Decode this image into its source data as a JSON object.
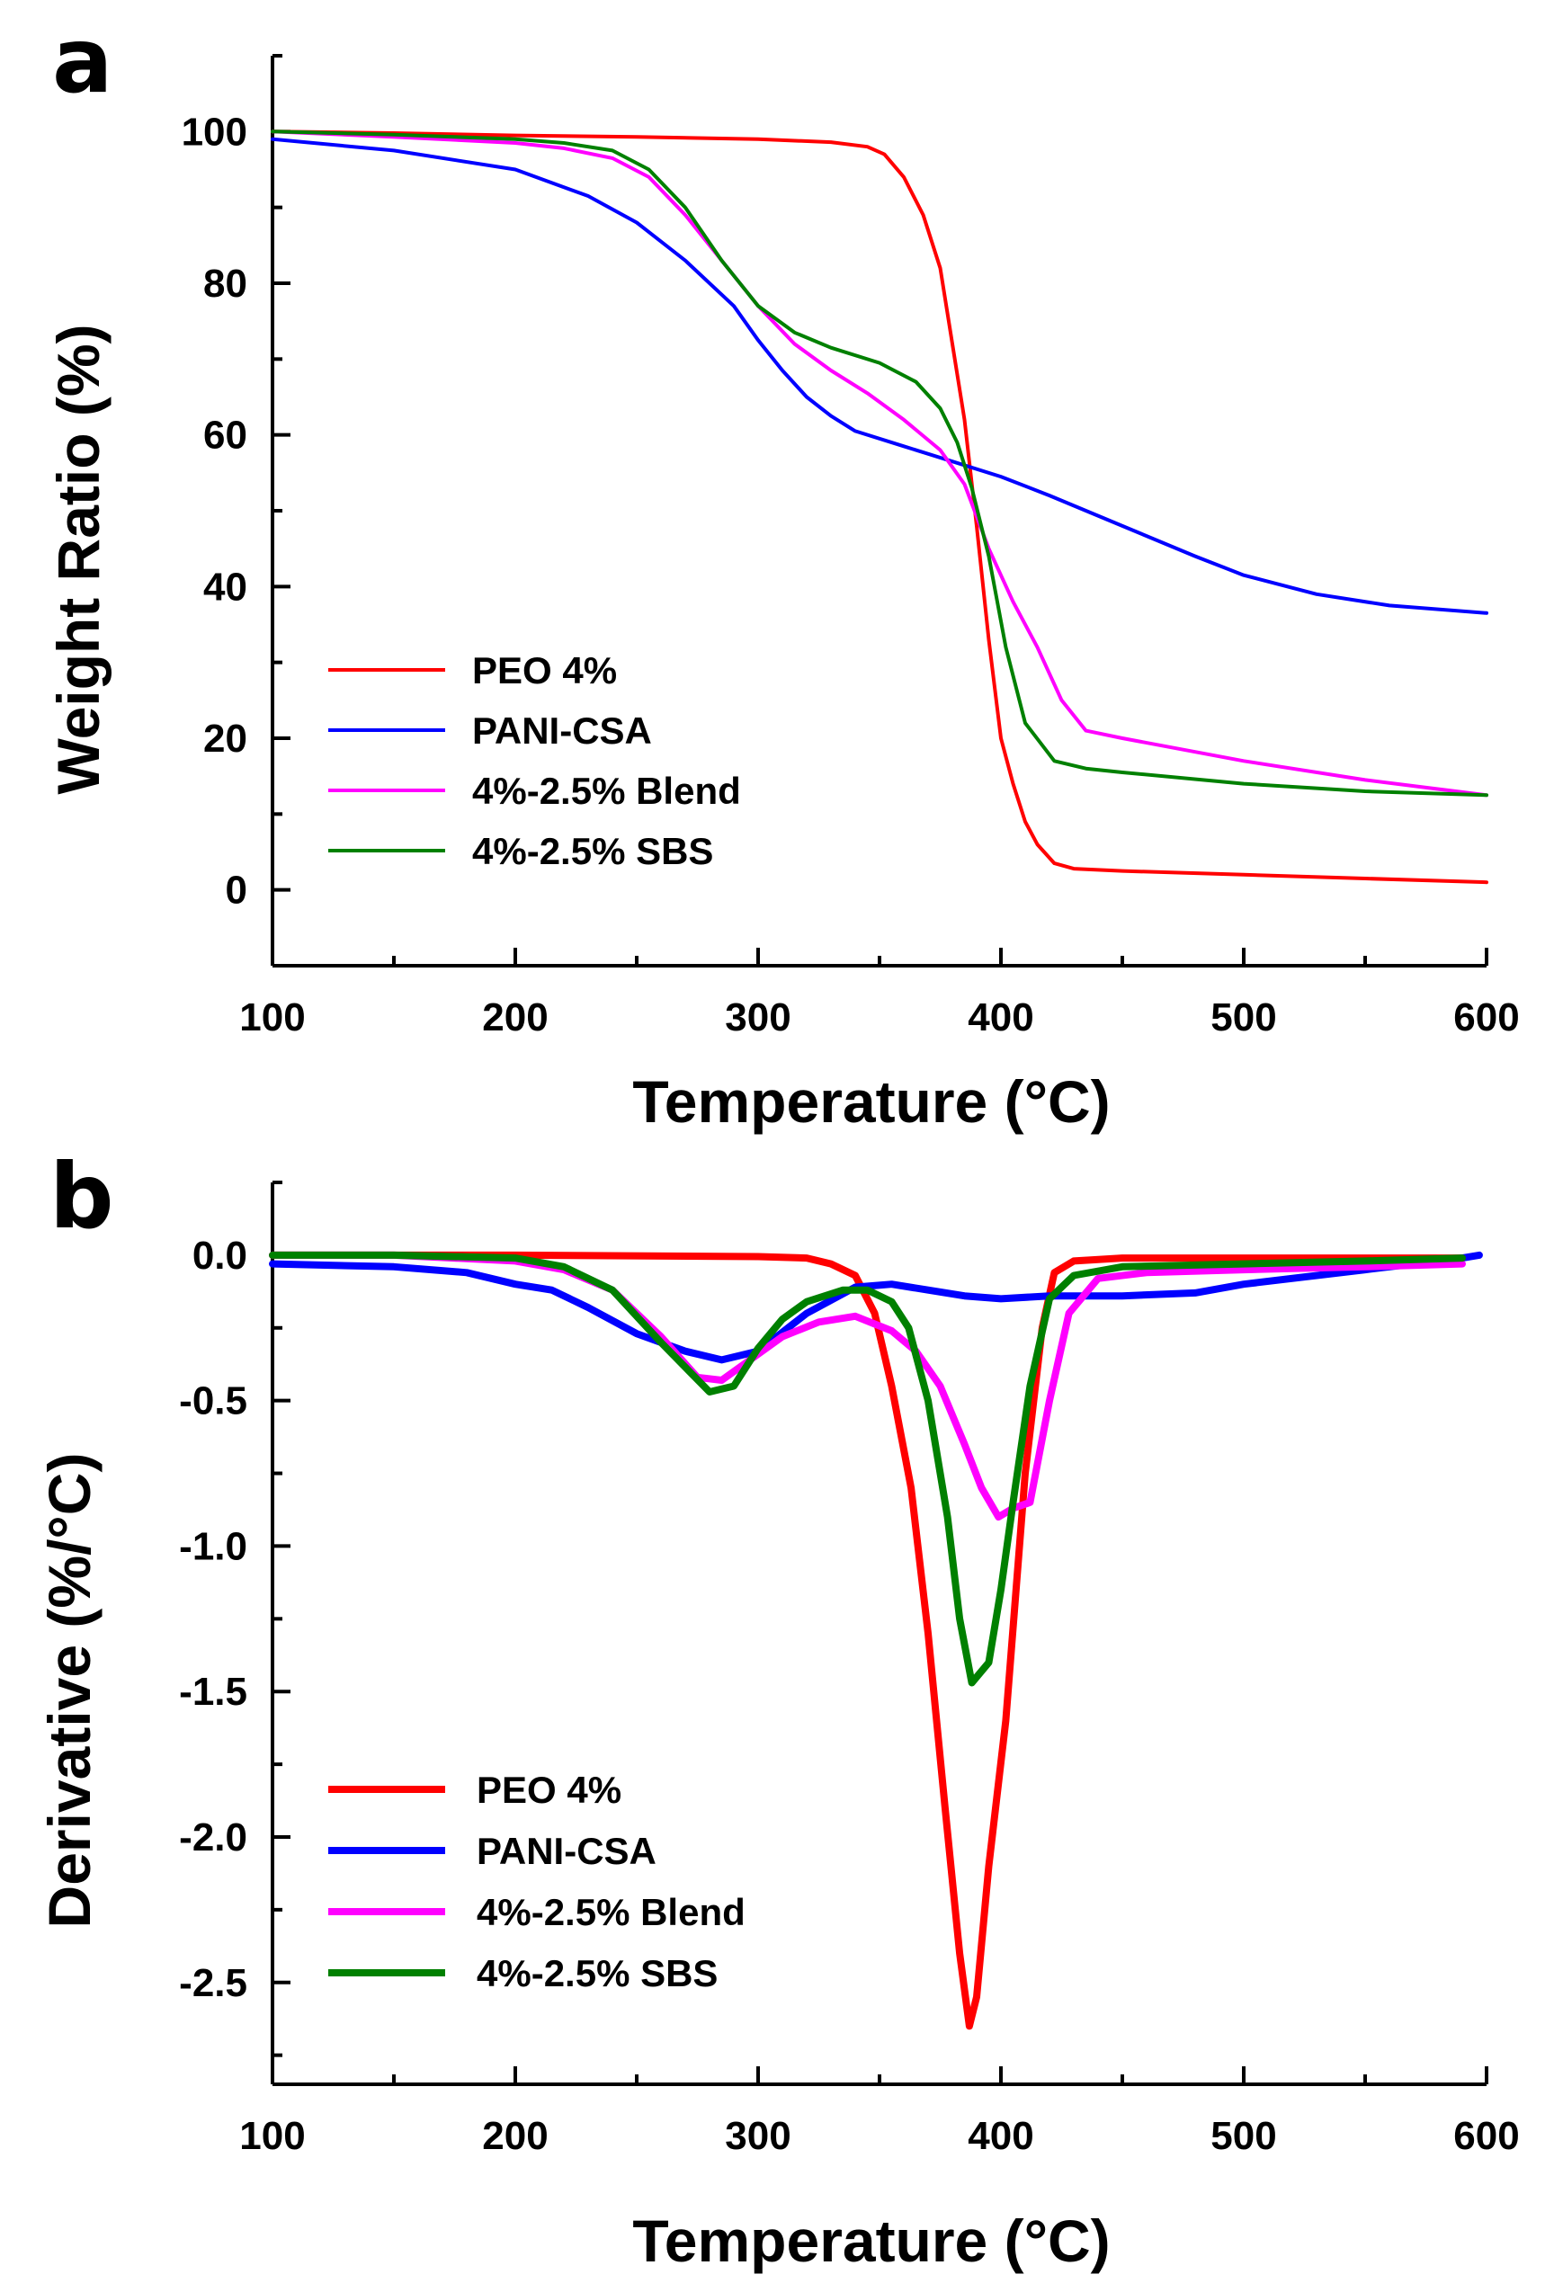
{
  "chart_data": [
    {
      "type": "line",
      "panel_label": "a",
      "title": "",
      "xlabel": "Temperature (°C)",
      "ylabel": "Weight Ratio (%)",
      "xlim": [
        100,
        600
      ],
      "ylim": [
        -10,
        110
      ],
      "xticks": [
        100,
        200,
        300,
        400,
        500,
        600
      ],
      "xtick_labels": [
        "100",
        "200",
        "300",
        "400",
        "500",
        "600"
      ],
      "yticks": [
        0,
        20,
        40,
        60,
        80,
        100
      ],
      "ytick_labels": [
        "0",
        "20",
        "40",
        "60",
        "80",
        "100"
      ],
      "grid": false,
      "legend_position": "bottom-left",
      "series": [
        {
          "name": "PEO 4%",
          "color": "#ff0000",
          "x": [
            100,
            150,
            200,
            250,
            300,
            330,
            345,
            352,
            360,
            368,
            375,
            380,
            385,
            390,
            395,
            400,
            405,
            410,
            415,
            422,
            430,
            450,
            500,
            550,
            600
          ],
          "y": [
            100,
            99.8,
            99.5,
            99.3,
            99.0,
            98.6,
            98.0,
            97.0,
            94.0,
            89.0,
            82.0,
            72.0,
            62.0,
            48.0,
            33.0,
            20.0,
            14.0,
            9.0,
            6.0,
            3.5,
            2.8,
            2.5,
            2.0,
            1.5,
            1.0
          ]
        },
        {
          "name": "PANI-CSA",
          "color": "#0000ff",
          "x": [
            100,
            150,
            200,
            230,
            250,
            270,
            290,
            300,
            310,
            320,
            330,
            340,
            360,
            380,
            400,
            420,
            450,
            480,
            500,
            530,
            560,
            600
          ],
          "y": [
            99.0,
            97.5,
            95.0,
            91.5,
            88.0,
            83.0,
            77.0,
            72.5,
            68.5,
            65.0,
            62.5,
            60.5,
            58.5,
            56.5,
            54.5,
            52.0,
            48.0,
            44.0,
            41.5,
            39.0,
            37.5,
            36.5
          ]
        },
        {
          "name": "4%-2.5% Blend",
          "color": "#ff00ff",
          "x": [
            100,
            150,
            200,
            220,
            240,
            255,
            270,
            285,
            300,
            315,
            330,
            345,
            360,
            375,
            385,
            395,
            405,
            415,
            425,
            435,
            450,
            500,
            550,
            600
          ],
          "y": [
            100,
            99.3,
            98.5,
            97.8,
            96.5,
            94.0,
            89.0,
            83.0,
            77.0,
            72.0,
            68.5,
            65.5,
            62.0,
            58.0,
            53.5,
            45.0,
            38.0,
            32.0,
            25.0,
            21.0,
            20.0,
            17.0,
            14.5,
            12.5
          ]
        },
        {
          "name": "4%-2.5% SBS",
          "color": "#008000",
          "x": [
            100,
            150,
            200,
            220,
            240,
            255,
            270,
            285,
            300,
            315,
            330,
            350,
            365,
            375,
            382,
            388,
            395,
            402,
            410,
            422,
            435,
            450,
            500,
            550,
            600
          ],
          "y": [
            100,
            99.6,
            99.0,
            98.5,
            97.5,
            95.0,
            90.0,
            83.0,
            77.0,
            73.5,
            71.5,
            69.5,
            67.0,
            63.5,
            59.0,
            53.0,
            44.0,
            32.0,
            22.0,
            17.0,
            16.0,
            15.5,
            14.0,
            13.0,
            12.5
          ]
        }
      ]
    },
    {
      "type": "line",
      "panel_label": "b",
      "title": "",
      "xlabel": "Temperature (°C)",
      "ylabel": "Derivative (%/°C)",
      "xlim": [
        100,
        600
      ],
      "ylim": [
        -2.85,
        0.25
      ],
      "xticks": [
        100,
        200,
        300,
        400,
        500,
        600
      ],
      "xtick_labels": [
        "100",
        "200",
        "300",
        "400",
        "500",
        "600"
      ],
      "yticks": [
        0.0,
        -0.5,
        -1.0,
        -1.5,
        -2.0,
        -2.5
      ],
      "ytick_labels": [
        "0.0",
        "-0.5",
        "-1.0",
        "-1.5",
        "-2.0",
        "-2.5"
      ],
      "grid": false,
      "legend_position": "bottom-left",
      "series": [
        {
          "name": "PEO 4%",
          "color": "#ff0000",
          "x": [
            100,
            200,
            300,
            320,
            330,
            340,
            348,
            355,
            363,
            370,
            377,
            383,
            387,
            390,
            395,
            402,
            410,
            417,
            422,
            430,
            450,
            500,
            550,
            590
          ],
          "y": [
            0.0,
            0.0,
            -0.005,
            -0.01,
            -0.03,
            -0.07,
            -0.2,
            -0.45,
            -0.8,
            -1.3,
            -1.9,
            -2.4,
            -2.65,
            -2.55,
            -2.1,
            -1.6,
            -0.75,
            -0.25,
            -0.06,
            -0.02,
            -0.01,
            -0.01,
            -0.01,
            -0.01
          ]
        },
        {
          "name": "PANI-CSA",
          "color": "#0000ff",
          "x": [
            100,
            150,
            180,
            200,
            215,
            230,
            250,
            270,
            285,
            300,
            320,
            340,
            355,
            370,
            385,
            400,
            420,
            450,
            480,
            500,
            550,
            590,
            597
          ],
          "y": [
            -0.03,
            -0.04,
            -0.06,
            -0.1,
            -0.12,
            -0.18,
            -0.27,
            -0.33,
            -0.36,
            -0.33,
            -0.2,
            -0.11,
            -0.1,
            -0.12,
            -0.14,
            -0.15,
            -0.14,
            -0.14,
            -0.13,
            -0.1,
            -0.05,
            -0.01,
            0.0
          ]
        },
        {
          "name": "4%-2.5% Blend",
          "color": "#ff00ff",
          "x": [
            100,
            150,
            200,
            220,
            240,
            260,
            275,
            285,
            295,
            310,
            325,
            340,
            355,
            365,
            375,
            385,
            392,
            399,
            405,
            412,
            420,
            428,
            440,
            460,
            500,
            550,
            590
          ],
          "y": [
            0.0,
            0.0,
            -0.02,
            -0.05,
            -0.12,
            -0.28,
            -0.42,
            -0.43,
            -0.37,
            -0.28,
            -0.23,
            -0.21,
            -0.26,
            -0.33,
            -0.45,
            -0.65,
            -0.8,
            -0.9,
            -0.87,
            -0.85,
            -0.5,
            -0.2,
            -0.08,
            -0.06,
            -0.05,
            -0.04,
            -0.03
          ]
        },
        {
          "name": "4%-2.5% SBS",
          "color": "#008000",
          "x": [
            100,
            150,
            200,
            220,
            240,
            260,
            280,
            290,
            300,
            310,
            320,
            335,
            345,
            355,
            362,
            370,
            378,
            383,
            388,
            395,
            400,
            405,
            412,
            420,
            430,
            450,
            500,
            550,
            590
          ],
          "y": [
            0.0,
            0.0,
            -0.01,
            -0.04,
            -0.12,
            -0.3,
            -0.47,
            -0.45,
            -0.32,
            -0.22,
            -0.16,
            -0.12,
            -0.12,
            -0.16,
            -0.25,
            -0.5,
            -0.9,
            -1.25,
            -1.47,
            -1.4,
            -1.15,
            -0.85,
            -0.45,
            -0.15,
            -0.07,
            -0.04,
            -0.03,
            -0.02,
            -0.01
          ]
        }
      ]
    }
  ]
}
